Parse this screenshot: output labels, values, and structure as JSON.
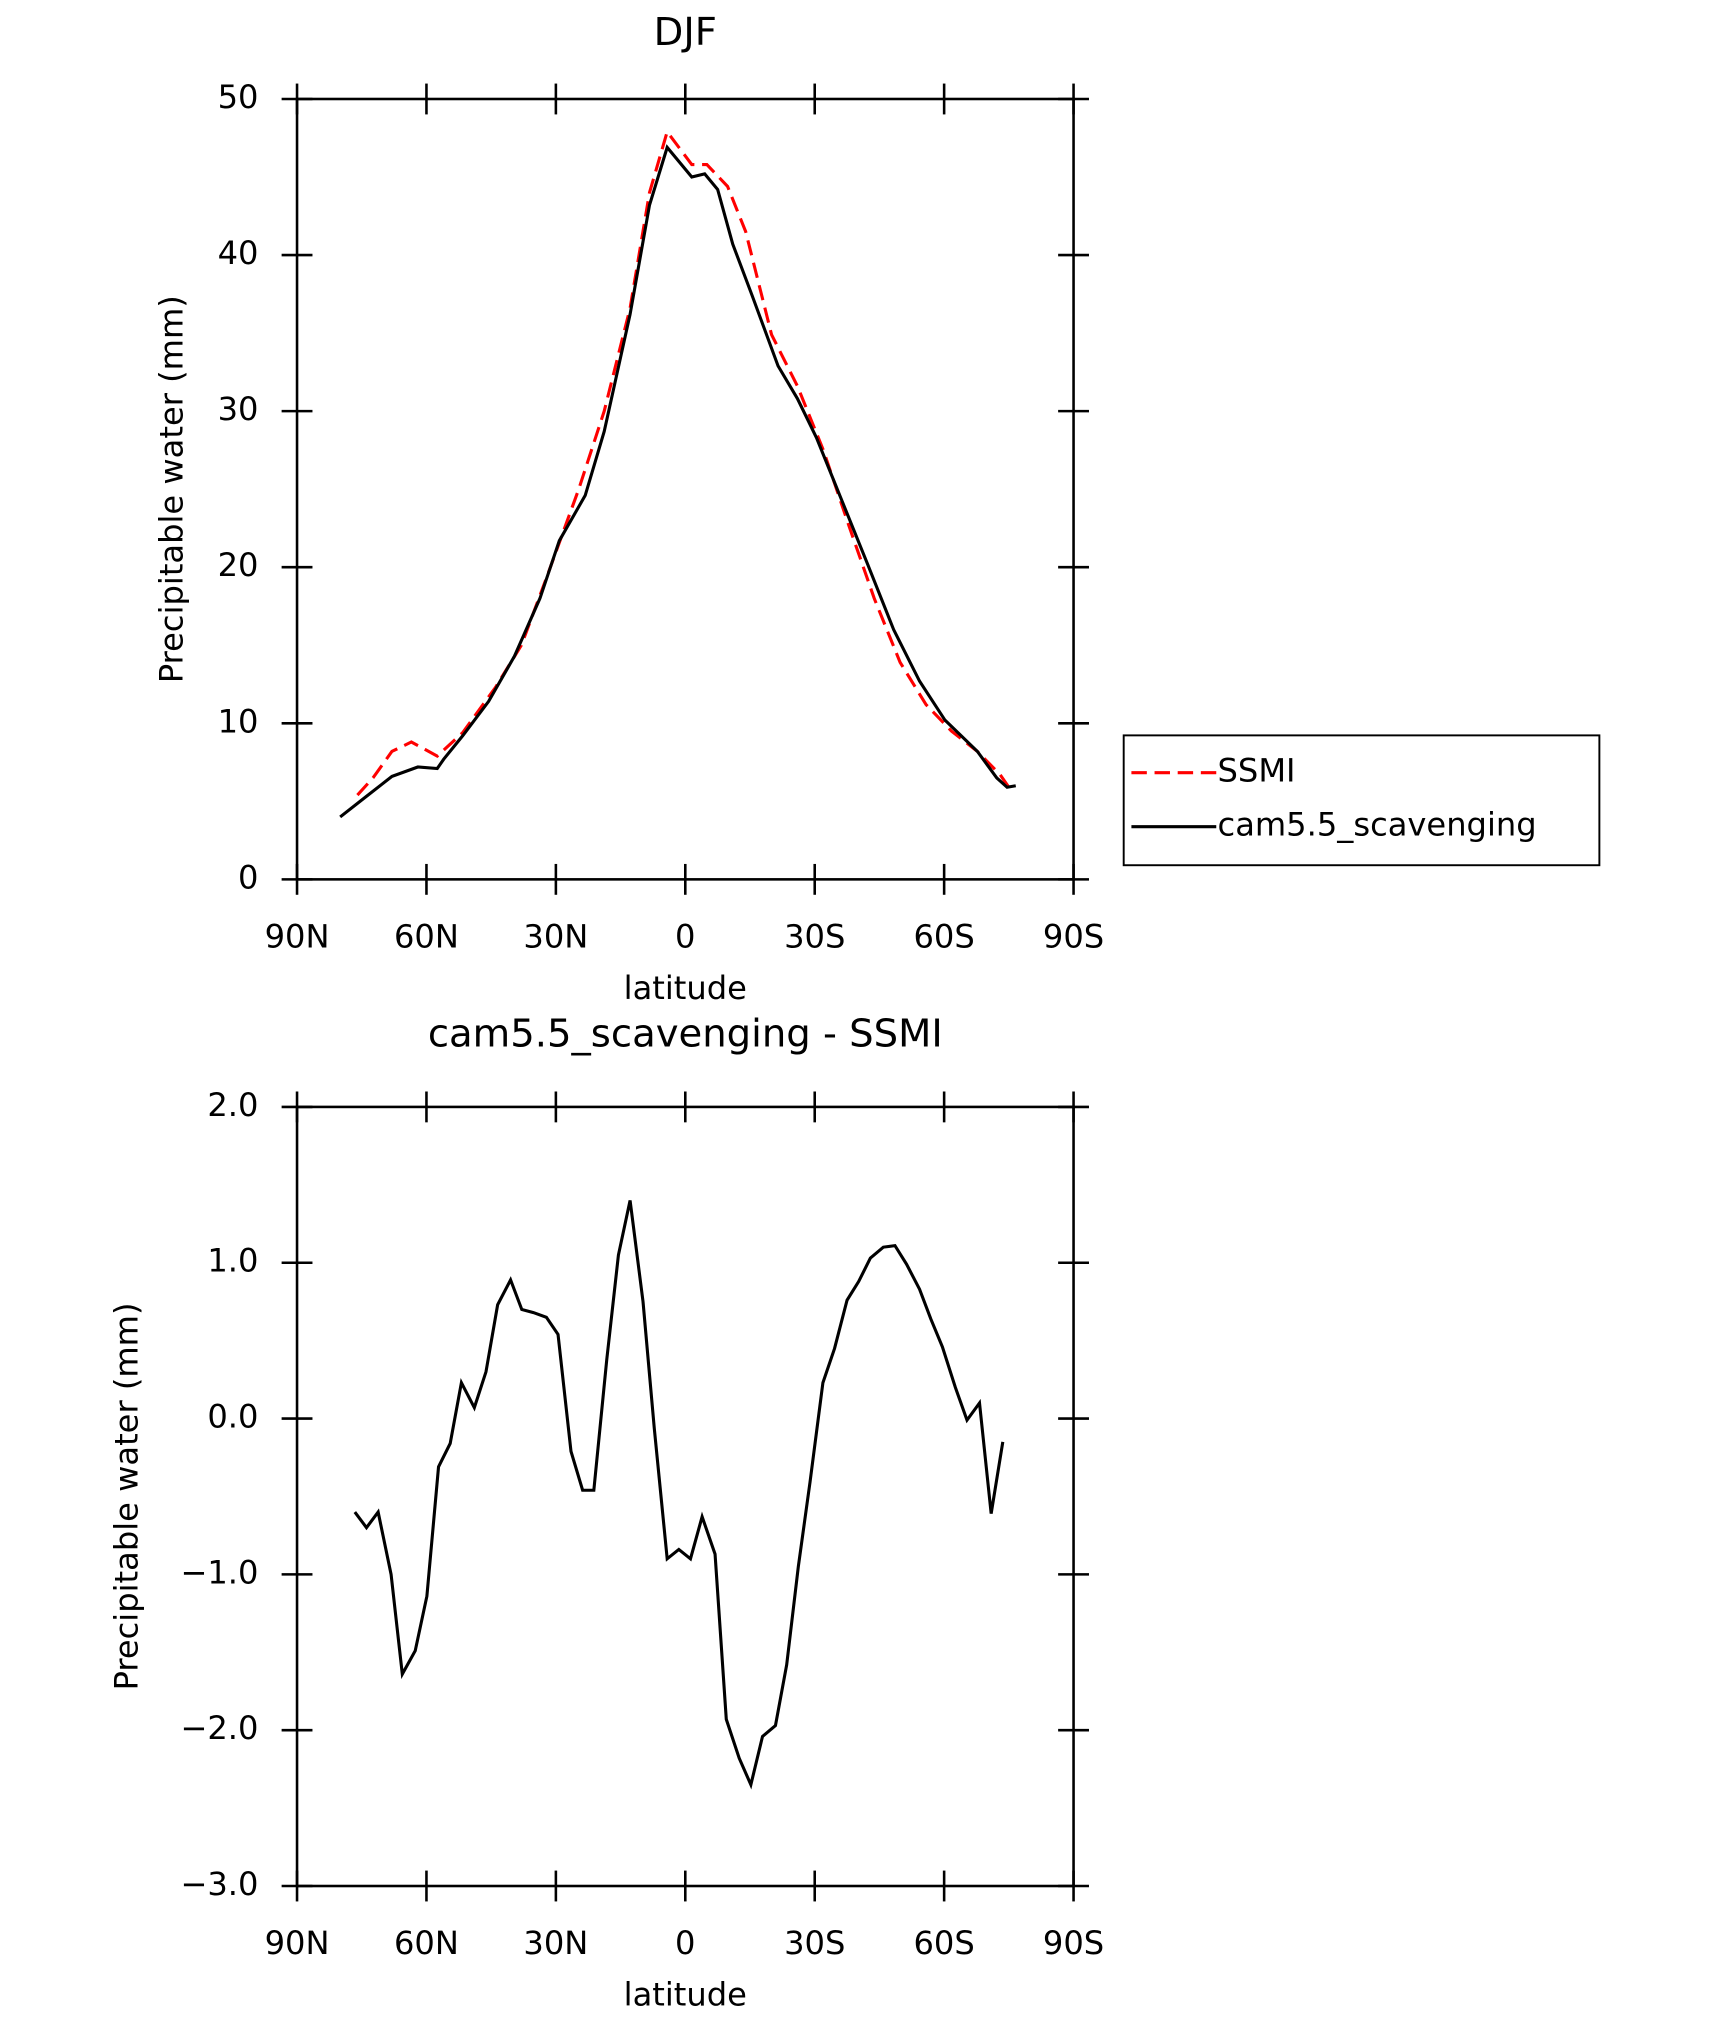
{
  "chart_data": [
    {
      "type": "line",
      "title": "DJF",
      "x_label": "latitude",
      "y_label": "Precipitable water (mm)",
      "xlim": [
        90,
        -90
      ],
      "xticks": [
        {
          "value": 90,
          "label": "90N"
        },
        {
          "value": 60,
          "label": "60N"
        },
        {
          "value": 30,
          "label": "30N"
        },
        0,
        {
          "value": -30,
          "label": "30S"
        },
        {
          "value": -60,
          "label": "60S"
        },
        {
          "value": -90,
          "label": "90S"
        }
      ],
      "ylim": [
        0,
        50
      ],
      "yticks": [
        0,
        10,
        20,
        30,
        40,
        50
      ],
      "legend": "outside right",
      "series": [
        {
          "name": "SSMI",
          "color": "#ff0000",
          "line_style": "dashed",
          "x": [
            76,
            72.4,
            68,
            63.5,
            57.5,
            51.6,
            44,
            38,
            32.2,
            24.7,
            18.8,
            12.8,
            8.3,
            4.2,
            -1.5,
            -5,
            -9.8,
            -14,
            -20,
            -26,
            -32,
            -38,
            -43.8,
            -49.8,
            -55.8,
            -61.7,
            -67.7,
            -73,
            -75
          ],
          "values": [
            5.4,
            6.5,
            8.2,
            8.8,
            7.9,
            9.4,
            12.3,
            15,
            19.3,
            25,
            30,
            36.6,
            44,
            47.9,
            45.8,
            45.8,
            44.4,
            41.5,
            34.9,
            31.6,
            27.5,
            22.6,
            18,
            13.9,
            11.2,
            9.5,
            8.2,
            6.7,
            5.9
          ]
        },
        {
          "name": "cam5.5_scavenging",
          "color": "#000000",
          "line_style": "solid",
          "x": [
            80,
            74,
            68,
            62,
            57.5,
            56,
            51.6,
            45.6,
            39.6,
            33.7,
            29.2,
            23.2,
            18.8,
            12.8,
            8.3,
            4.2,
            -1.5,
            -4.5,
            -7.5,
            -11,
            -15.5,
            -21.5,
            -26,
            -30.4,
            -36.4,
            -42.4,
            -48.3,
            -54.3,
            -60.2,
            -67.7,
            -72.2,
            -74.6,
            -76.6
          ],
          "values": [
            4.0,
            5.3,
            6.6,
            7.2,
            7.1,
            7.7,
            9.2,
            11.4,
            14.3,
            18,
            21.7,
            24.6,
            28.7,
            36.2,
            43.2,
            46.9,
            45,
            45.2,
            44.2,
            40.7,
            37.4,
            32.9,
            30.8,
            28.3,
            24.2,
            20.1,
            16,
            12.7,
            10.2,
            8.2,
            6.5,
            5.9,
            6.0
          ]
        }
      ]
    },
    {
      "type": "line",
      "title": "cam5.5_scavenging - SSMI",
      "x_label": "latitude",
      "y_label": "Precipitable water (mm)",
      "xlim": [
        90,
        -90
      ],
      "xticks": [
        {
          "value": 90,
          "label": "90N"
        },
        {
          "value": 60,
          "label": "60N"
        },
        {
          "value": 30,
          "label": "30N"
        },
        0,
        {
          "value": -30,
          "label": "30S"
        },
        {
          "value": -60,
          "label": "60S"
        },
        {
          "value": -90,
          "label": "90S"
        }
      ],
      "ylim": [
        -3,
        2
      ],
      "yticks": [
        {
          "value": 2,
          "label": "2.0"
        },
        {
          "value": 1,
          "label": "1.0"
        },
        {
          "value": 0,
          "label": "0.0"
        },
        {
          "value": -1,
          "label": "−1.0"
        },
        {
          "value": -2,
          "label": "−2.0"
        },
        {
          "value": -3,
          "label": "−3.0"
        }
      ],
      "color": "#000000",
      "x": [
        76.6,
        73.9,
        71.2,
        68.2,
        65.6,
        62.6,
        59.9,
        57.2,
        54.5,
        51.9,
        48.9,
        46.2,
        43.5,
        40.5,
        37.9,
        35.2,
        32.2,
        29.5,
        26.5,
        23.8,
        21.2,
        18.2,
        15.5,
        12.8,
        9.8,
        7.2,
        4.2,
        1.5,
        -1.2,
        -3.9,
        -6.9,
        -9.5,
        -12.5,
        -15.2,
        -17.9,
        -20.9,
        -23.5,
        -26.2,
        -28.9,
        -31.9,
        -34.6,
        -37.5,
        -40.2,
        -42.9,
        -45.9,
        -48.6,
        -51.3,
        -54.3,
        -56.9,
        -59.6,
        -62.6,
        -65.3,
        -68.2,
        -70.9,
        -73.6
      ],
      "values": [
        -0.6,
        -0.7,
        -0.6,
        -1.0,
        -1.64,
        -1.49,
        -1.14,
        -0.31,
        -0.16,
        0.23,
        0.07,
        0.3,
        0.73,
        0.89,
        0.7,
        0.68,
        0.65,
        0.54,
        -0.21,
        -0.46,
        -0.46,
        0.38,
        1.05,
        1.4,
        0.75,
        -0.06,
        -0.9,
        -0.84,
        -0.9,
        -0.63,
        -0.87,
        -1.93,
        -2.18,
        -2.35,
        -2.04,
        -1.97,
        -1.58,
        -0.95,
        -0.41,
        0.23,
        0.45,
        0.76,
        0.88,
        1.03,
        1.1,
        1.11,
        0.99,
        0.83,
        0.64,
        0.46,
        0.2,
        -0.01,
        0.1,
        -0.61,
        -0.15
      ]
    }
  ]
}
